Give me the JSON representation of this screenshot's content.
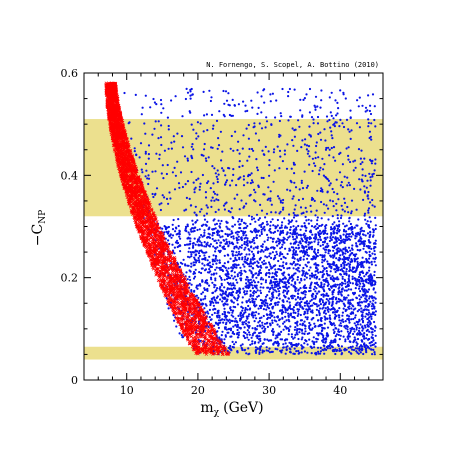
{
  "chart_data": {
    "type": "scatter",
    "credit": "N. Fornengo, S. Scopel, A. Bottino  (2010)",
    "xlabel": {
      "main": "m",
      "sub": "χ",
      "unit": "(GeV)"
    },
    "ylabel": {
      "main": "−C",
      "sub": "NP"
    },
    "xlim": [
      4,
      46
    ],
    "ylim": [
      0,
      0.6
    ],
    "x_ticks": [
      10,
      20,
      30,
      40
    ],
    "y_ticks": [
      0,
      0.2,
      0.4,
      0.6
    ],
    "x_tick_labels": [
      "10",
      "20",
      "30",
      "40"
    ],
    "y_tick_labels": [
      "0",
      "0.2",
      "0.4",
      "0.6"
    ],
    "bands": [
      {
        "y": [
          0.32,
          0.51
        ],
        "color": "#ece08e"
      },
      {
        "y": [
          0.04,
          0.065
        ],
        "color": "#ece08e"
      }
    ],
    "series": [
      {
        "color": "#0a14e6",
        "marker": "dot",
        "region": {
          "x_min": 9,
          "x_max": 45,
          "y_min": 0.05,
          "y_dense_max": 0.3,
          "y_sparse_max": 0.57,
          "min_x_at_top": 9,
          "min_x_at_bottom": 20
        }
      },
      {
        "color": "#ff0000",
        "marker": "x",
        "region": {
          "x_top": 7.5,
          "y_top": 0.58,
          "x_bottom": 21,
          "y_bottom": 0.05,
          "spread": 3.5
        }
      }
    ],
    "grid": false
  }
}
